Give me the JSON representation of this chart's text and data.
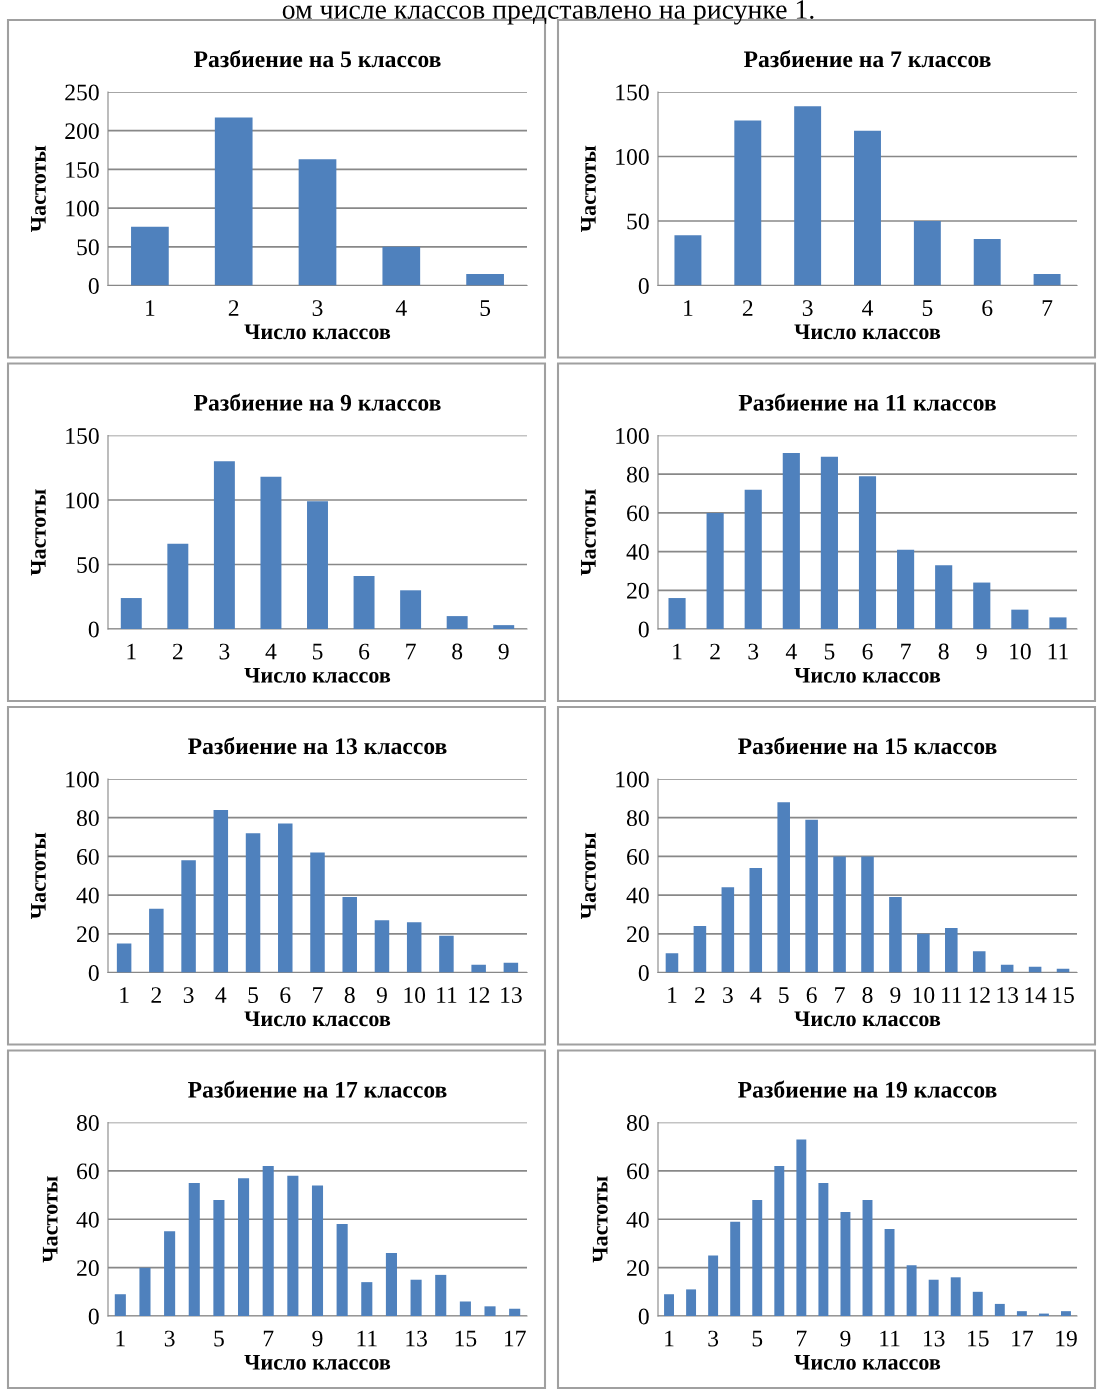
{
  "chart_data": [
    {
      "type": "bar",
      "title": "Разбиение на 5 классов",
      "xlabel": "Число классов",
      "ylabel": "Частоты",
      "annotations": [
        "ом числе классов представлено на рисунке 1."
      ],
      "categories": [
        "1",
        "2",
        "3",
        "4",
        "5"
      ],
      "values": [
        76,
        217,
        163,
        50,
        15
      ],
      "color": "#4f81bd",
      "ylim": [
        0,
        250
      ],
      "yticks": [
        0,
        50,
        100,
        150,
        200,
        250
      ],
      "grid": "y"
    },
    {
      "type": "bar",
      "title": "Разбиение на 7 классов",
      "xlabel": "Число классов",
      "ylabel": "Частоты",
      "categories": [
        "1",
        "2",
        "3",
        "4",
        "5",
        "6",
        "7"
      ],
      "values": [
        39,
        128,
        139,
        120,
        50,
        36,
        9
      ],
      "color": "#4f81bd",
      "ylim": [
        0,
        150
      ],
      "yticks": [
        0,
        50,
        100,
        150
      ],
      "grid": "y"
    },
    {
      "type": "bar",
      "title": "Разбиение на 9 классов",
      "xlabel": "Число классов",
      "ylabel": "Частоты",
      "categories": [
        "1",
        "2",
        "3",
        "4",
        "5",
        "6",
        "7",
        "8",
        "9"
      ],
      "values": [
        24,
        66,
        130,
        118,
        99,
        41,
        30,
        10,
        3
      ],
      "color": "#4f81bd",
      "ylim": [
        0,
        150
      ],
      "yticks": [
        0,
        50,
        100,
        150
      ],
      "grid": "y"
    },
    {
      "type": "bar",
      "title": "Разбиение на 11 классов",
      "xlabel": "Число классов",
      "ylabel": "Частоты",
      "categories": [
        "1",
        "2",
        "3",
        "4",
        "5",
        "6",
        "7",
        "8",
        "9",
        "10",
        "11"
      ],
      "values": [
        16,
        60,
        72,
        91,
        89,
        79,
        41,
        33,
        24,
        10,
        6
      ],
      "color": "#4f81bd",
      "ylim": [
        0,
        100
      ],
      "yticks": [
        0,
        20,
        40,
        60,
        80,
        100
      ],
      "grid": "y"
    },
    {
      "type": "bar",
      "title": "Разбиение на 13 классов",
      "xlabel": "Число классов",
      "ylabel": "Частоты",
      "categories": [
        "1",
        "2",
        "3",
        "4",
        "5",
        "6",
        "7",
        "8",
        "9",
        "10",
        "11",
        "12",
        "13"
      ],
      "values": [
        15,
        33,
        58,
        84,
        72,
        77,
        62,
        39,
        27,
        26,
        19,
        4,
        5
      ],
      "color": "#4f81bd",
      "ylim": [
        0,
        100
      ],
      "yticks": [
        0,
        20,
        40,
        60,
        80,
        100
      ],
      "grid": "y"
    },
    {
      "type": "bar",
      "title": "Разбиение на 15 классов",
      "xlabel": "Число классов",
      "ylabel": "Частоты",
      "categories": [
        "1",
        "2",
        "3",
        "4",
        "5",
        "6",
        "7",
        "8",
        "9",
        "10",
        "11",
        "12",
        "13",
        "14",
        "15"
      ],
      "values": [
        10,
        24,
        44,
        54,
        88,
        79,
        60,
        60,
        39,
        20,
        23,
        11,
        4,
        3,
        2
      ],
      "color": "#4f81bd",
      "ylim": [
        0,
        100
      ],
      "yticks": [
        0,
        20,
        40,
        60,
        80,
        100
      ],
      "grid": "y"
    },
    {
      "type": "bar",
      "title": "Разбиение на 17 классов",
      "xlabel": "Число классов",
      "ylabel": "Частоты",
      "categories": [
        "1",
        null,
        "3",
        null,
        "5",
        null,
        "7",
        null,
        "9",
        null,
        "11",
        null,
        "13",
        null,
        "15",
        null,
        "17"
      ],
      "values": [
        9,
        20,
        35,
        55,
        48,
        57,
        62,
        58,
        54,
        38,
        14,
        26,
        15,
        17,
        6,
        4,
        3
      ],
      "color": "#4f81bd",
      "ylim": [
        0,
        80
      ],
      "yticks": [
        0,
        20,
        40,
        60,
        80
      ],
      "grid": "y"
    },
    {
      "type": "bar",
      "title": "Разбиение на 19 классов",
      "xlabel": "Число классов",
      "ylabel": "Частоты",
      "categories": [
        "1",
        null,
        "3",
        null,
        "5",
        null,
        "7",
        null,
        "9",
        null,
        "11",
        null,
        "13",
        null,
        "15",
        null,
        "17",
        null,
        "19"
      ],
      "values": [
        9,
        11,
        25,
        39,
        48,
        62,
        73,
        55,
        43,
        48,
        36,
        21,
        15,
        16,
        10,
        5,
        2,
        1,
        2
      ],
      "color": "#4f81bd",
      "ylim": [
        0,
        80
      ],
      "yticks": [
        0,
        20,
        40,
        60,
        80
      ],
      "grid": "y"
    }
  ]
}
